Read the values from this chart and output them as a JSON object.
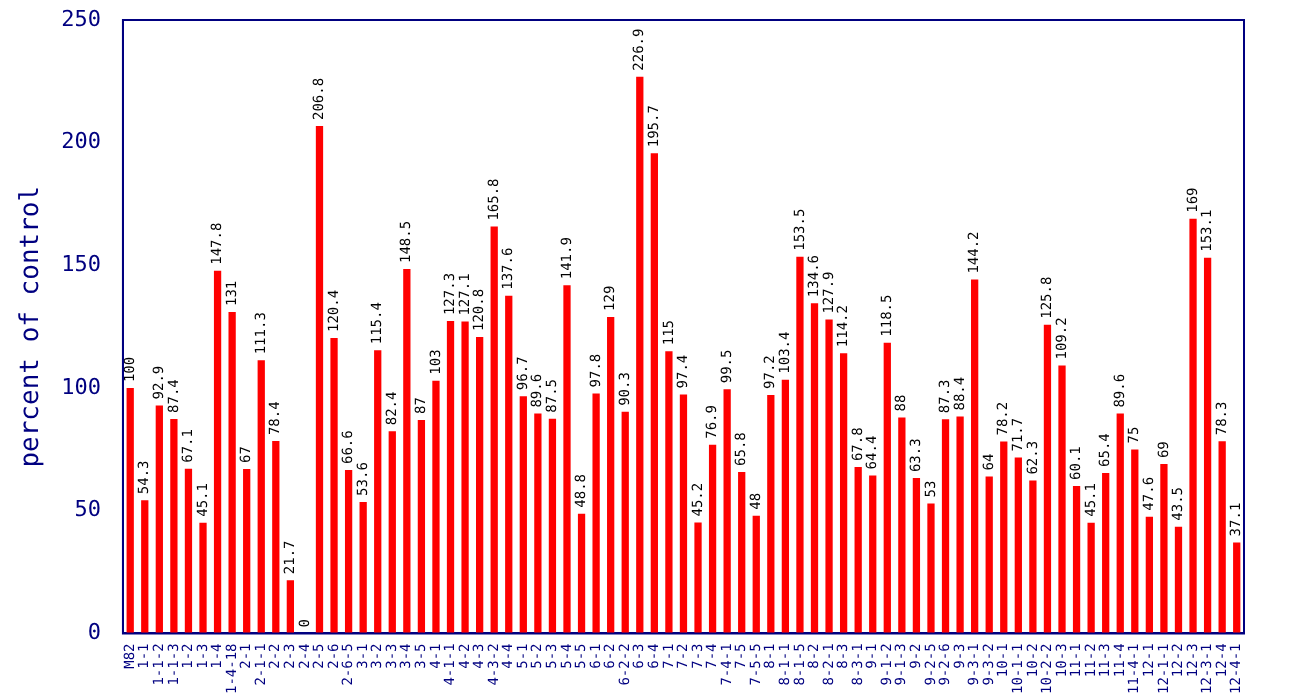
{
  "chart_data": {
    "type": "bar",
    "ylabel": "percent of control",
    "categories": [
      "M82",
      "1-1",
      "1-1-2",
      "1-1-3",
      "1-2",
      "1-3",
      "1-4",
      "1-4-18",
      "2-1",
      "2-1-1",
      "2-2",
      "2-3",
      "2-4",
      "2-5",
      "2-6",
      "2-6-5",
      "3-1",
      "3-2",
      "3-3",
      "3-4",
      "3-5",
      "4-1",
      "4-1-1",
      "4-2",
      "4-3",
      "4-3-2",
      "4-4",
      "5-1",
      "5-2",
      "5-3",
      "5-4",
      "5-5",
      "6-1",
      "6-2",
      "6-2-2",
      "6-3",
      "6-4",
      "7-1",
      "7-2",
      "7-3",
      "7-4",
      "7-4-1",
      "7-5",
      "7-5-5",
      "8-1",
      "8-1-1",
      "8-1-5",
      "8-2",
      "8-2-1",
      "8-3",
      "8-3-1",
      "9-1",
      "9-1-2",
      "9-1-3",
      "9-2",
      "9-2-5",
      "9-2-6",
      "9-3",
      "9-3-1",
      "9-3-2",
      "10-1",
      "10-1-1",
      "10-2",
      "10-2-2",
      "10-3",
      "11-1",
      "11-2",
      "11-3",
      "11-4",
      "11-4-1",
      "12-1",
      "12-1-1",
      "12-2",
      "12-3",
      "12-3-1",
      "12-4",
      "12-4-1"
    ],
    "values": [
      100,
      54.3,
      92.9,
      87.4,
      67.1,
      45.1,
      147.8,
      131,
      67,
      111.3,
      78.4,
      21.7,
      0,
      206.8,
      120.4,
      66.6,
      53.6,
      115.4,
      82.4,
      148.5,
      87,
      103,
      127.3,
      127.1,
      120.8,
      165.8,
      137.6,
      96.7,
      89.6,
      87.5,
      141.9,
      48.8,
      97.8,
      129,
      90.3,
      226.9,
      195.7,
      115,
      97.4,
      45.2,
      76.9,
      99.5,
      65.8,
      48,
      97.2,
      103.4,
      153.5,
      134.6,
      127.9,
      114.2,
      67.8,
      64.4,
      118.5,
      88,
      63.3,
      53,
      87.3,
      88.4,
      144.2,
      64,
      78.2,
      71.7,
      62.3,
      125.8,
      109.2,
      60.1,
      45.1,
      65.4,
      89.6,
      75,
      47.6,
      69,
      43.5,
      169,
      153.1,
      78.3,
      37.1
    ],
    "color": "#ff0000",
    "ylim": [
      0,
      250
    ],
    "yticks": [
      0,
      50,
      100,
      150,
      200,
      250
    ],
    "grid": false,
    "legend": false,
    "data_labels": true
  }
}
